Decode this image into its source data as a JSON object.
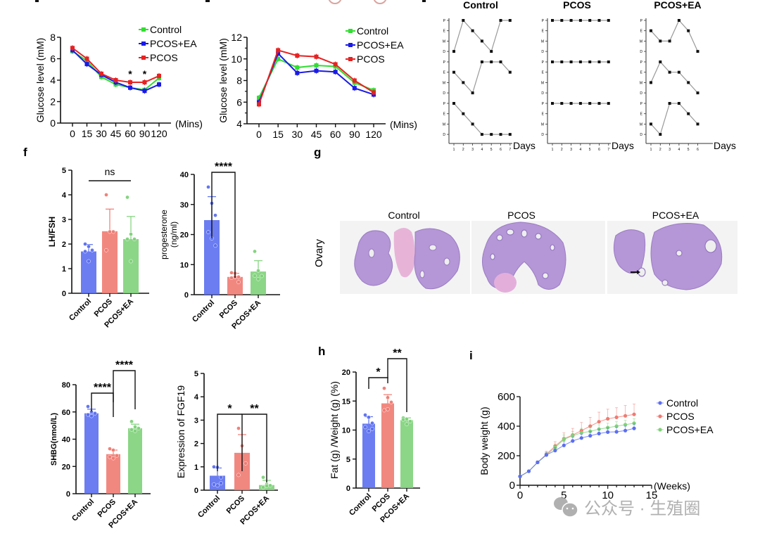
{
  "colors": {
    "control": "#5b6ff0",
    "pcos": "#f07b72",
    "pcos_ea": "#7fd27a",
    "line_control": "#33dd33",
    "line_pcos_ea": "#1a1ae6",
    "line_pcos": "#e62222",
    "ink": "#111111",
    "cycle_line": "#999999",
    "histo_bg": "#f3f3f3",
    "histo_tissue": "#b89ad6",
    "watermark": "#a8a8a8"
  },
  "panel_letters": {
    "f": "f",
    "g": "g",
    "h": "h",
    "i": "i"
  },
  "chart_data": [
    {
      "id": "ipgtt-insulin",
      "type": "line",
      "title": "",
      "xlabel": "(Mins)",
      "ylabel": "Glucose level (mM)",
      "x": [
        0,
        15,
        30,
        45,
        60,
        90,
        120
      ],
      "x_tick_labels": [
        "0",
        "15",
        "30",
        "45",
        "60",
        "90",
        "120"
      ],
      "ylim": [
        0,
        8
      ],
      "y_ticks": [
        0,
        2,
        4,
        6,
        8
      ],
      "legend": [
        "Control",
        "PCOS+EA",
        "PCOS"
      ],
      "legend_position": "top-right",
      "series": [
        {
          "name": "Control",
          "color_key": "line_control",
          "values": [
            6.7,
            5.8,
            4.3,
            3.6,
            3.3,
            3.1,
            4.2
          ]
        },
        {
          "name": "PCOS+EA",
          "color_key": "line_pcos_ea",
          "values": [
            6.8,
            5.5,
            4.5,
            3.8,
            3.3,
            3.0,
            3.6
          ]
        },
        {
          "name": "PCOS",
          "color_key": "line_pcos",
          "values": [
            7.0,
            6.0,
            4.6,
            4.0,
            3.8,
            3.8,
            4.4
          ]
        }
      ],
      "annotations": [
        {
          "x": 60,
          "text": "*"
        },
        {
          "x": 90,
          "text": "*"
        }
      ]
    },
    {
      "id": "ogtt",
      "type": "line",
      "title": "",
      "xlabel": "(Mins)",
      "ylabel": "Glucose level (mM)",
      "x": [
        0,
        15,
        30,
        45,
        60,
        90,
        120
      ],
      "x_tick_labels": [
        "0",
        "15",
        "30",
        "45",
        "60",
        "90",
        "120"
      ],
      "ylim": [
        4,
        12
      ],
      "y_ticks": [
        4,
        6,
        8,
        10,
        12
      ],
      "legend": [
        "Control",
        "PCOS+EA",
        "PCOS"
      ],
      "legend_position": "top-right",
      "series": [
        {
          "name": "Control",
          "color_key": "line_control",
          "values": [
            6.4,
            10.0,
            9.2,
            9.4,
            9.3,
            7.8,
            7.1
          ]
        },
        {
          "name": "PCOS+EA",
          "color_key": "line_pcos_ea",
          "values": [
            6.0,
            10.5,
            8.7,
            8.9,
            8.8,
            7.3,
            6.7
          ]
        },
        {
          "name": "PCOS",
          "color_key": "line_pcos",
          "values": [
            5.8,
            10.8,
            10.3,
            10.2,
            9.5,
            8.0,
            6.9
          ]
        }
      ],
      "annotations": []
    },
    {
      "id": "estrous-cycle",
      "type": "line",
      "stage_labels": [
        "D",
        "M",
        "E",
        "P"
      ],
      "xlabel": "Days",
      "groups": [
        {
          "title": "Control",
          "days": [
            1,
            2,
            3,
            4,
            5,
            6,
            7
          ],
          "traces": [
            [
              "D",
              "P",
              "E",
              "M",
              "D",
              "P",
              "P"
            ],
            [
              "E",
              "M",
              "D",
              "P",
              "P",
              "P",
              "E"
            ],
            [
              "P",
              "E",
              "M",
              "D",
              "D",
              "D",
              "D"
            ]
          ]
        },
        {
          "title": "PCOS",
          "days": [
            1,
            2,
            3,
            4,
            5,
            6,
            7
          ],
          "traces": [
            [
              "P",
              "P",
              "P",
              "P",
              "P",
              "P",
              "P"
            ],
            [
              "P",
              "P",
              "P",
              "P",
              "P",
              "P",
              "P"
            ],
            [
              "P",
              "P",
              "P",
              "P",
              "P",
              "P",
              "P"
            ]
          ]
        },
        {
          "title": "PCOS+EA",
          "days": [
            1,
            2,
            3,
            4,
            5,
            6
          ],
          "traces": [
            [
              "E",
              "M",
              "M",
              "P",
              "E",
              "D"
            ],
            [
              "M",
              "P",
              "E",
              "E",
              "M",
              "D"
            ],
            [
              "M",
              "D",
              "P",
              "P",
              "E",
              "M"
            ]
          ]
        }
      ]
    },
    {
      "id": "lh-fsh",
      "type": "bar",
      "categories": [
        "Control",
        "PCOS",
        "PCOS+EA"
      ],
      "values": [
        1.7,
        2.52,
        2.2
      ],
      "errors": [
        0.28,
        0.9,
        0.92
      ],
      "points": [
        [
          2.0,
          1.9,
          1.75,
          1.7,
          1.3
        ],
        [
          4.0,
          2.5,
          2.5,
          1.75
        ],
        [
          3.9,
          2.4,
          2.2,
          2.2,
          1.3
        ]
      ],
      "ylabel": "LH/FSH",
      "ylim": [
        0,
        5
      ],
      "y_ticks": [
        0,
        1,
        2,
        3,
        4,
        5
      ],
      "significance": [
        {
          "from": 0,
          "to": 2,
          "text": "ns",
          "style": "line"
        }
      ]
    },
    {
      "id": "progesterone",
      "type": "bar",
      "categories": [
        "Control",
        "PCOS",
        "PCOS+EA"
      ],
      "values": [
        24.8,
        5.9,
        7.7
      ],
      "errors": [
        7.8,
        1.2,
        3.6
      ],
      "points": [
        [
          35.8,
          30.4,
          26.4,
          20.8,
          18.7,
          16.3
        ],
        [
          7.3,
          7.1,
          5.9,
          5.6,
          5.9,
          4.2
        ],
        [
          14.4,
          8.0,
          6.2,
          6.3,
          5.2
        ]
      ],
      "ylabel": "progesterone (ng/ml)",
      "ylim": [
        0,
        40
      ],
      "y_ticks": [
        0,
        10,
        20,
        30,
        40
      ],
      "significance": [
        {
          "from": 0,
          "to": 1,
          "text": "****",
          "style": "bracket"
        }
      ]
    },
    {
      "id": "shbg",
      "type": "bar",
      "categories": [
        "Control",
        "PCOS",
        "PCOS+EA"
      ],
      "values": [
        59.0,
        29.0,
        48.0
      ],
      "errors": [
        3.0,
        3.0,
        3.0
      ],
      "points": [
        [
          64.0,
          60.0,
          59.0,
          58.0,
          57.0
        ],
        [
          33.0,
          32.0,
          28.0,
          27.0,
          26.0
        ],
        [
          53.0,
          49.0,
          48.0,
          47.0,
          46.0
        ]
      ],
      "ylabel": "SHBG(nmol/L)",
      "ylim": [
        0,
        80
      ],
      "y_ticks": [
        0,
        20,
        40,
        60,
        80
      ],
      "significance": [
        {
          "from": 0,
          "to": 1,
          "text": "****",
          "style": "bracket"
        },
        {
          "from": 1,
          "to": 2,
          "text": "****",
          "style": "bracket"
        }
      ]
    },
    {
      "id": "fgf19",
      "type": "bar",
      "categories": [
        "Control",
        "PCOS",
        "PCOS+EA"
      ],
      "values": [
        0.62,
        1.6,
        0.22
      ],
      "errors": [
        0.33,
        0.78,
        0.2
      ],
      "points": [
        [
          1.0,
          0.98,
          0.55,
          0.25,
          0.2,
          0.3
        ],
        [
          2.65,
          1.9,
          1.15,
          0.65
        ],
        [
          0.55,
          0.25,
          0.2,
          0.12,
          0.18
        ]
      ],
      "ylabel": "Expression of FGF19",
      "ylim": [
        0,
        5
      ],
      "y_ticks": [
        0,
        1,
        2,
        3,
        4,
        5
      ],
      "significance": [
        {
          "from": 0,
          "to": 1,
          "text": "*",
          "style": "bracket"
        },
        {
          "from": 1,
          "to": 2,
          "text": "**",
          "style": "bracket"
        }
      ]
    },
    {
      "id": "fat-weight",
      "type": "bar",
      "categories": [
        "Control",
        "PCOS",
        "PCOS+EA"
      ],
      "values": [
        11.1,
        14.6,
        11.7
      ],
      "errors": [
        1.2,
        1.5,
        0.4
      ],
      "points": [
        [
          12.6,
          12.2,
          11.2,
          10.5,
          9.8,
          10.2
        ],
        [
          17.2,
          15.6,
          14.8,
          13.4,
          13.6
        ],
        [
          12.1,
          11.9,
          11.5,
          11.8,
          11.0
        ]
      ],
      "ylabel": "Fat (g) /Weight (g) (%)",
      "ylim": [
        0,
        20
      ],
      "y_ticks": [
        0,
        5,
        10,
        15,
        20
      ],
      "significance": [
        {
          "from": 0,
          "to": 1,
          "text": "*",
          "style": "bracket"
        },
        {
          "from": 1,
          "to": 2,
          "text": "**",
          "style": "bracket"
        }
      ]
    },
    {
      "id": "body-weight",
      "type": "line",
      "xlabel": "(Weeks)",
      "ylabel": "Body weight (g)",
      "x": [
        0,
        1,
        2,
        3,
        4,
        5,
        6,
        7,
        8,
        9,
        10,
        11,
        12,
        13
      ],
      "xlim": [
        0,
        15
      ],
      "x_ticks": [
        0,
        5,
        10,
        15
      ],
      "ylim": [
        0,
        600
      ],
      "y_ticks": [
        0,
        200,
        400,
        600
      ],
      "legend_position": "right",
      "series": [
        {
          "name": "Control",
          "color_key": "control",
          "values": [
            60,
            95,
            155,
            205,
            235,
            270,
            300,
            320,
            335,
            350,
            360,
            362,
            370,
            385
          ],
          "errors": [
            5,
            5,
            10,
            15,
            20,
            25,
            25,
            25,
            30,
            30,
            30,
            30,
            30,
            30
          ]
        },
        {
          "name": "PCOS",
          "color_key": "pcos",
          "values": [
            60,
            95,
            155,
            210,
            265,
            315,
            340,
            370,
            400,
            430,
            450,
            460,
            470,
            480
          ],
          "errors": [
            5,
            5,
            10,
            20,
            30,
            40,
            45,
            55,
            60,
            65,
            65,
            65,
            70,
            70
          ]
        },
        {
          "name": "PCOS+EA",
          "color_key": "pcos_ea",
          "values": [
            60,
            95,
            155,
            205,
            255,
            310,
            335,
            355,
            365,
            380,
            390,
            400,
            410,
            420
          ],
          "errors": [
            5,
            5,
            10,
            20,
            25,
            30,
            30,
            30,
            30,
            30,
            30,
            30,
            30,
            30
          ]
        }
      ]
    }
  ],
  "histology": {
    "row_label": "Ovary",
    "columns": [
      "Control",
      "PCOS",
      "PCOS+EA"
    ]
  },
  "watermark": {
    "text": "公众号 · 生殖圈",
    "icon": "wechat-icon"
  }
}
